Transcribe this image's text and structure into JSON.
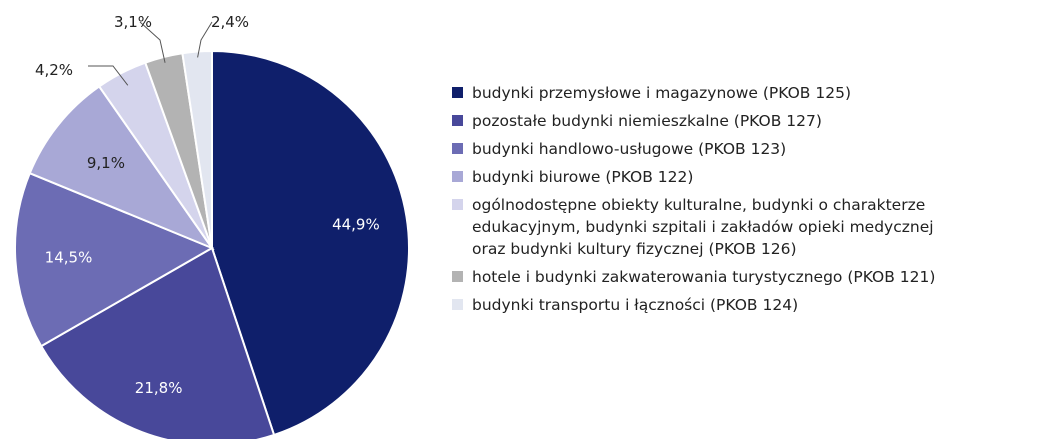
{
  "chart_data": {
    "type": "pie",
    "slices": [
      {
        "label": "budynki przemysłowe i magazynowe (PKOB 125)",
        "value": 44.9,
        "value_label": "44,9%",
        "color": "#0f1f6b"
      },
      {
        "label": "pozostałe budynki niemieszkalne (PKOB 127)",
        "value": 21.8,
        "value_label": "21,8%",
        "color": "#48489a"
      },
      {
        "label": "budynki handlowo-usługowe (PKOB 123)",
        "value": 14.5,
        "value_label": "14,5%",
        "color": "#6c6cb4"
      },
      {
        "label": "budynki biurowe (PKOB 122)",
        "value": 9.1,
        "value_label": "9,1%",
        "color": "#a8a8d6"
      },
      {
        "label": "ogólnodostępne obiekty kulturalne, budynki o charakterze\nedukacyjnym, budynki szpitali i zakładów opieki medycznej\noraz budynki kultury fizycznej (PKOB 126)",
        "value": 4.2,
        "value_label": "4,2%",
        "color": "#d4d4ec"
      },
      {
        "label": "hotele i budynki zakwaterowania turystycznego (PKOB 121)",
        "value": 3.1,
        "value_label": "3,1%",
        "color": "#b3b3b3"
      },
      {
        "label": "budynki transportu i łączności (PKOB 124)",
        "value": 2.4,
        "value_label": "2,4%",
        "color": "#e2e6f0"
      }
    ],
    "legend_position": "right",
    "title": ""
  }
}
